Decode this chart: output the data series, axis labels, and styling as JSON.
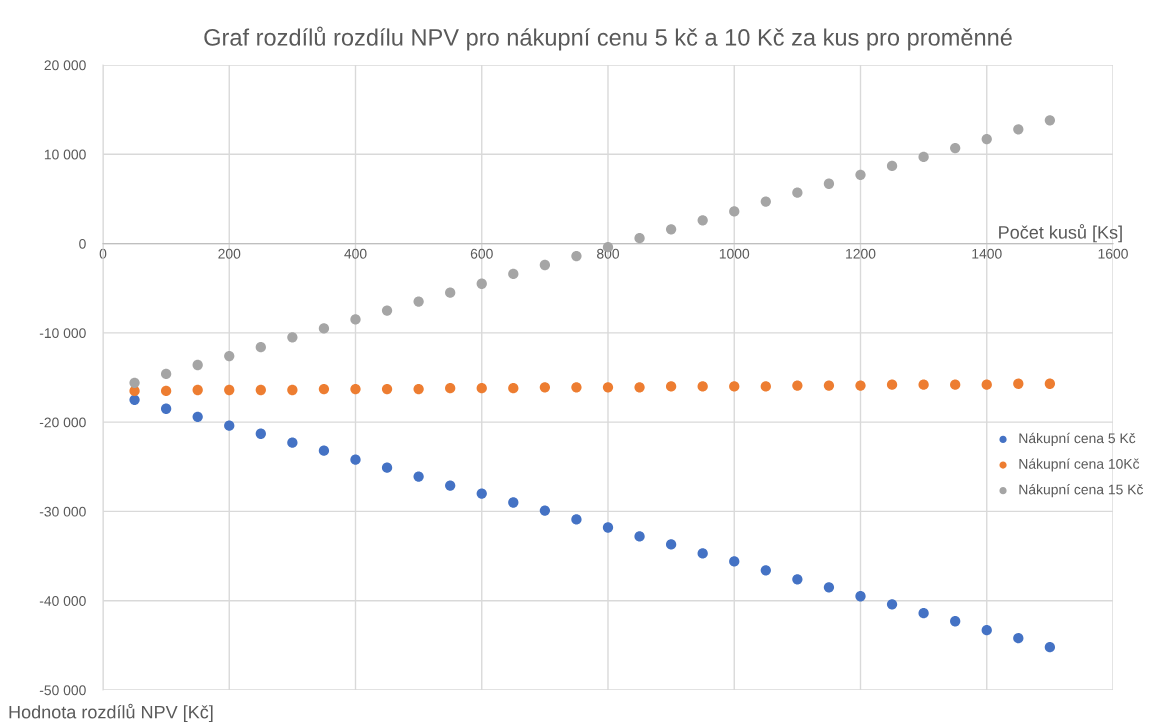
{
  "chart_data": {
    "type": "scatter",
    "title": "Graf rozdílů rozdílu NPV pro nákupní cenu 5 kč a 10 Kč za kus pro proměnné",
    "xlabel": "Počet kusů [Ks]",
    "ylabel": "Hodnota rozdílů NPV [Kč]",
    "x": [
      50,
      100,
      150,
      200,
      250,
      300,
      350,
      400,
      450,
      500,
      550,
      600,
      650,
      700,
      750,
      800,
      850,
      900,
      950,
      1000,
      1050,
      1100,
      1150,
      1200,
      1250,
      1300,
      1350,
      1400,
      1450,
      1500
    ],
    "series": [
      {
        "name": "Nákupní cena 5 Kč",
        "color": "#4472c4",
        "values": [
          -17500,
          -18500,
          -19400,
          -20400,
          -21300,
          -22300,
          -23200,
          -24200,
          -25100,
          -26100,
          -27100,
          -28000,
          -29000,
          -29900,
          -30900,
          -31800,
          -32800,
          -33700,
          -34700,
          -35600,
          -36600,
          -37600,
          -38500,
          -39500,
          -40400,
          -41400,
          -42300,
          -43300,
          -44200,
          -45200
        ]
      },
      {
        "name": "Nákupní cena 10Kč",
        "color": "#ed7d31",
        "values": [
          -16500,
          -16500,
          -16400,
          -16400,
          -16400,
          -16400,
          -16300,
          -16300,
          -16300,
          -16300,
          -16200,
          -16200,
          -16200,
          -16100,
          -16100,
          -16100,
          -16100,
          -16000,
          -16000,
          -16000,
          -16000,
          -15900,
          -15900,
          -15900,
          -15800,
          -15800,
          -15800,
          -15800,
          -15700,
          -15700
        ]
      },
      {
        "name": "Nákupní cena 15 Kč",
        "color": "#a5a5a5",
        "values": [
          -15600,
          -14600,
          -13600,
          -12600,
          -11600,
          -10500,
          -9500,
          -8500,
          -7500,
          -6500,
          -5500,
          -4500,
          -3400,
          -2400,
          -1400,
          -400,
          600,
          1600,
          2600,
          3600,
          4700,
          5700,
          6700,
          7700,
          8700,
          9700,
          10700,
          11700,
          12800,
          13800
        ]
      }
    ],
    "xlim": [
      0,
      1600
    ],
    "xticks": [
      0,
      200,
      400,
      600,
      800,
      1000,
      1200,
      1400,
      1600
    ],
    "ylim": [
      -50000,
      20000
    ],
    "yticks": [
      {
        "value": -50000,
        "label": "-50 000"
      },
      {
        "value": -40000,
        "label": "-40 000"
      },
      {
        "value": -30000,
        "label": "-30 000"
      },
      {
        "value": -20000,
        "label": "-20 000"
      },
      {
        "value": -10000,
        "label": "-10 000"
      },
      {
        "value": 0,
        "label": "0"
      },
      {
        "value": 10000,
        "label": "10 000"
      },
      {
        "value": 20000,
        "label": "20 000"
      }
    ],
    "grid": true,
    "legend": "right",
    "marker": "circle"
  }
}
